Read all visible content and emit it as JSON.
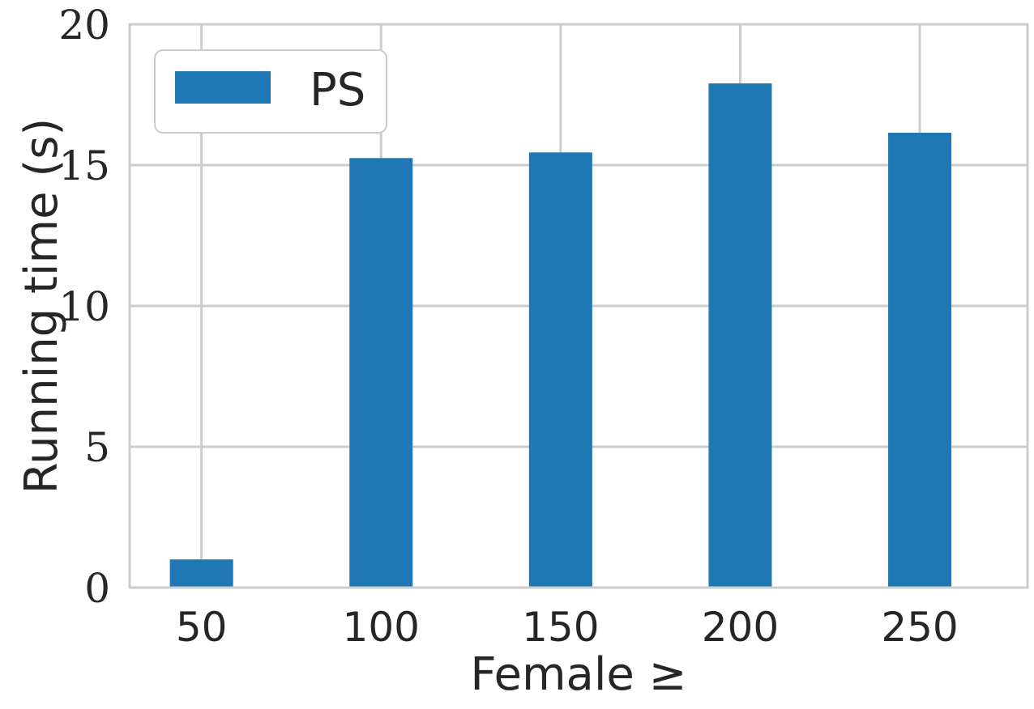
{
  "chart_data": {
    "type": "bar",
    "categories": [
      "50",
      "100",
      "150",
      "200",
      "250"
    ],
    "series": [
      {
        "name": "PS",
        "values": [
          1.0,
          15.25,
          15.45,
          17.9,
          16.15
        ],
        "color": "#1f77b4"
      }
    ],
    "xlabel": "Female ≥",
    "ylabel": "Running time (s)",
    "ylim": [
      0,
      20
    ],
    "yticks": [
      0,
      5,
      10,
      15,
      20
    ],
    "grid": true,
    "legend_position": "top-left"
  }
}
